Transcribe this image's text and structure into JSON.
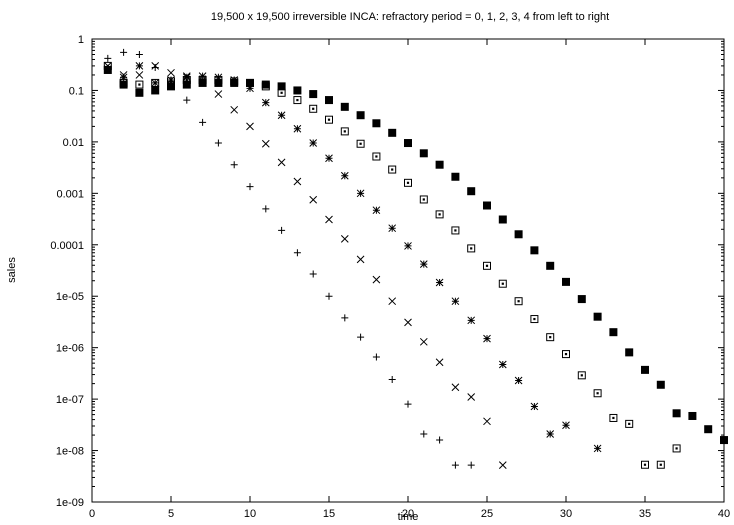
{
  "chart_data": {
    "type": "scatter",
    "title": "19,500 x 19,500 irreversible INCA: refractory period = 0, 1, 2, 3, 4 from left to right",
    "xlabel": "time",
    "ylabel": "sales",
    "xlim": [
      0,
      40
    ],
    "ylim": [
      1e-09,
      1
    ],
    "y_scale": "log",
    "grid": false,
    "legend": "none",
    "x_ticks": [
      "0",
      "5",
      "10",
      "15",
      "20",
      "25",
      "30",
      "35",
      "40"
    ],
    "y_ticks": [
      "1e-09",
      "1e-08",
      "1e-07",
      "1e-06",
      "1e-05",
      "0.0001",
      "0.001",
      "0.01",
      "0.1",
      "1"
    ],
    "series": [
      {
        "marker": "plus",
        "points": [
          [
            1,
            0.42
          ],
          [
            2,
            0.55
          ],
          [
            3,
            0.5
          ],
          [
            4,
            0.28
          ],
          [
            5,
            0.15
          ],
          [
            6,
            0.065
          ],
          [
            7,
            0.024
          ],
          [
            8,
            0.0095
          ],
          [
            9,
            0.0036
          ],
          [
            10,
            0.00135
          ],
          [
            11,
            0.0005
          ],
          [
            12,
            0.00019
          ],
          [
            13,
            7e-05
          ],
          [
            14,
            2.7e-05
          ],
          [
            15,
            1e-05
          ],
          [
            16,
            3.8e-06
          ],
          [
            17,
            1.6e-06
          ],
          [
            18,
            6.6e-07
          ],
          [
            19,
            2.4e-07
          ],
          [
            20,
            8e-08
          ],
          [
            21,
            2.1e-08
          ],
          [
            22,
            1.6e-08
          ],
          [
            23,
            5.2e-09
          ],
          [
            24,
            5.2e-09
          ]
        ]
      },
      {
        "marker": "cross",
        "points": [
          [
            1,
            0.3
          ],
          [
            2,
            0.2
          ],
          [
            3,
            0.2
          ],
          [
            4,
            0.3
          ],
          [
            5,
            0.22
          ],
          [
            6,
            0.19
          ],
          [
            7,
            0.16
          ],
          [
            8,
            0.085
          ],
          [
            9,
            0.042
          ],
          [
            10,
            0.02
          ],
          [
            11,
            0.0092
          ],
          [
            12,
            0.004
          ],
          [
            13,
            0.0017
          ],
          [
            14,
            0.00075
          ],
          [
            15,
            0.00031
          ],
          [
            16,
            0.00013
          ],
          [
            17,
            5.2e-05
          ],
          [
            18,
            2.1e-05
          ],
          [
            19,
            8e-06
          ],
          [
            20,
            3.1e-06
          ],
          [
            21,
            1.3e-06
          ],
          [
            22,
            5.2e-07
          ],
          [
            23,
            1.7e-07
          ],
          [
            24,
            1.1e-07
          ],
          [
            25,
            3.7e-08
          ],
          [
            26,
            5.2e-09
          ]
        ]
      },
      {
        "marker": "star",
        "points": [
          [
            1,
            0.26
          ],
          [
            2,
            0.18
          ],
          [
            3,
            0.3
          ],
          [
            4,
            0.14
          ],
          [
            5,
            0.16
          ],
          [
            6,
            0.18
          ],
          [
            7,
            0.19
          ],
          [
            8,
            0.18
          ],
          [
            9,
            0.16
          ],
          [
            10,
            0.11
          ],
          [
            11,
            0.058
          ],
          [
            12,
            0.033
          ],
          [
            13,
            0.018
          ],
          [
            14,
            0.0095
          ],
          [
            15,
            0.0048
          ],
          [
            16,
            0.0022
          ],
          [
            17,
            0.001
          ],
          [
            18,
            0.00047
          ],
          [
            19,
            0.00021
          ],
          [
            20,
            9.5e-05
          ],
          [
            21,
            4.2e-05
          ],
          [
            22,
            1.85e-05
          ],
          [
            23,
            8e-06
          ],
          [
            24,
            3.4e-06
          ],
          [
            25,
            1.5e-06
          ],
          [
            26,
            4.7e-07
          ],
          [
            27,
            2.3e-07
          ],
          [
            28,
            7.2e-08
          ],
          [
            29,
            2.1e-08
          ],
          [
            30,
            3.1e-08
          ],
          [
            32,
            1.1e-08
          ]
        ]
      },
      {
        "marker": "box",
        "points": [
          [
            1,
            0.3
          ],
          [
            2,
            0.14
          ],
          [
            3,
            0.13
          ],
          [
            4,
            0.14
          ],
          [
            5,
            0.15
          ],
          [
            6,
            0.16
          ],
          [
            7,
            0.16
          ],
          [
            8,
            0.16
          ],
          [
            9,
            0.15
          ],
          [
            10,
            0.14
          ],
          [
            11,
            0.12
          ],
          [
            12,
            0.09
          ],
          [
            13,
            0.065
          ],
          [
            14,
            0.044
          ],
          [
            15,
            0.027
          ],
          [
            16,
            0.016
          ],
          [
            17,
            0.0092
          ],
          [
            18,
            0.0052
          ],
          [
            19,
            0.0029
          ],
          [
            20,
            0.0016
          ],
          [
            21,
            0.00076
          ],
          [
            22,
            0.00039
          ],
          [
            23,
            0.00019
          ],
          [
            24,
            8.5e-05
          ],
          [
            25,
            3.9e-05
          ],
          [
            26,
            1.75e-05
          ],
          [
            27,
            8e-06
          ],
          [
            28,
            3.6e-06
          ],
          [
            29,
            1.6e-06
          ],
          [
            30,
            7.5e-07
          ],
          [
            31,
            2.9e-07
          ],
          [
            32,
            1.3e-07
          ],
          [
            33,
            4.3e-08
          ],
          [
            34,
            3.3e-08
          ],
          [
            35,
            5.3e-09
          ],
          [
            36,
            5.3e-09
          ],
          [
            37,
            1.1e-08
          ]
        ]
      },
      {
        "marker": "filled-box",
        "points": [
          [
            1,
            0.25
          ],
          [
            2,
            0.13
          ],
          [
            3,
            0.09
          ],
          [
            4,
            0.1
          ],
          [
            5,
            0.12
          ],
          [
            6,
            0.13
          ],
          [
            7,
            0.14
          ],
          [
            8,
            0.14
          ],
          [
            9,
            0.14
          ],
          [
            10,
            0.14
          ],
          [
            11,
            0.13
          ],
          [
            12,
            0.12
          ],
          [
            13,
            0.1
          ],
          [
            14,
            0.085
          ],
          [
            15,
            0.065
          ],
          [
            16,
            0.048
          ],
          [
            17,
            0.033
          ],
          [
            18,
            0.023
          ],
          [
            19,
            0.015
          ],
          [
            20,
            0.0095
          ],
          [
            21,
            0.006
          ],
          [
            22,
            0.0036
          ],
          [
            23,
            0.0021
          ],
          [
            24,
            0.0011
          ],
          [
            25,
            0.00058
          ],
          [
            26,
            0.00031
          ],
          [
            27,
            0.00016
          ],
          [
            28,
            7.8e-05
          ],
          [
            29,
            3.9e-05
          ],
          [
            30,
            1.9e-05
          ],
          [
            31,
            8.8e-06
          ],
          [
            32,
            4e-06
          ],
          [
            33,
            2e-06
          ],
          [
            34,
            8.1e-07
          ],
          [
            35,
            3.7e-07
          ],
          [
            36,
            1.9e-07
          ],
          [
            37,
            5.3e-08
          ],
          [
            38,
            4.7e-08
          ],
          [
            39,
            2.6e-08
          ],
          [
            40,
            1.6e-08
          ]
        ]
      }
    ]
  }
}
